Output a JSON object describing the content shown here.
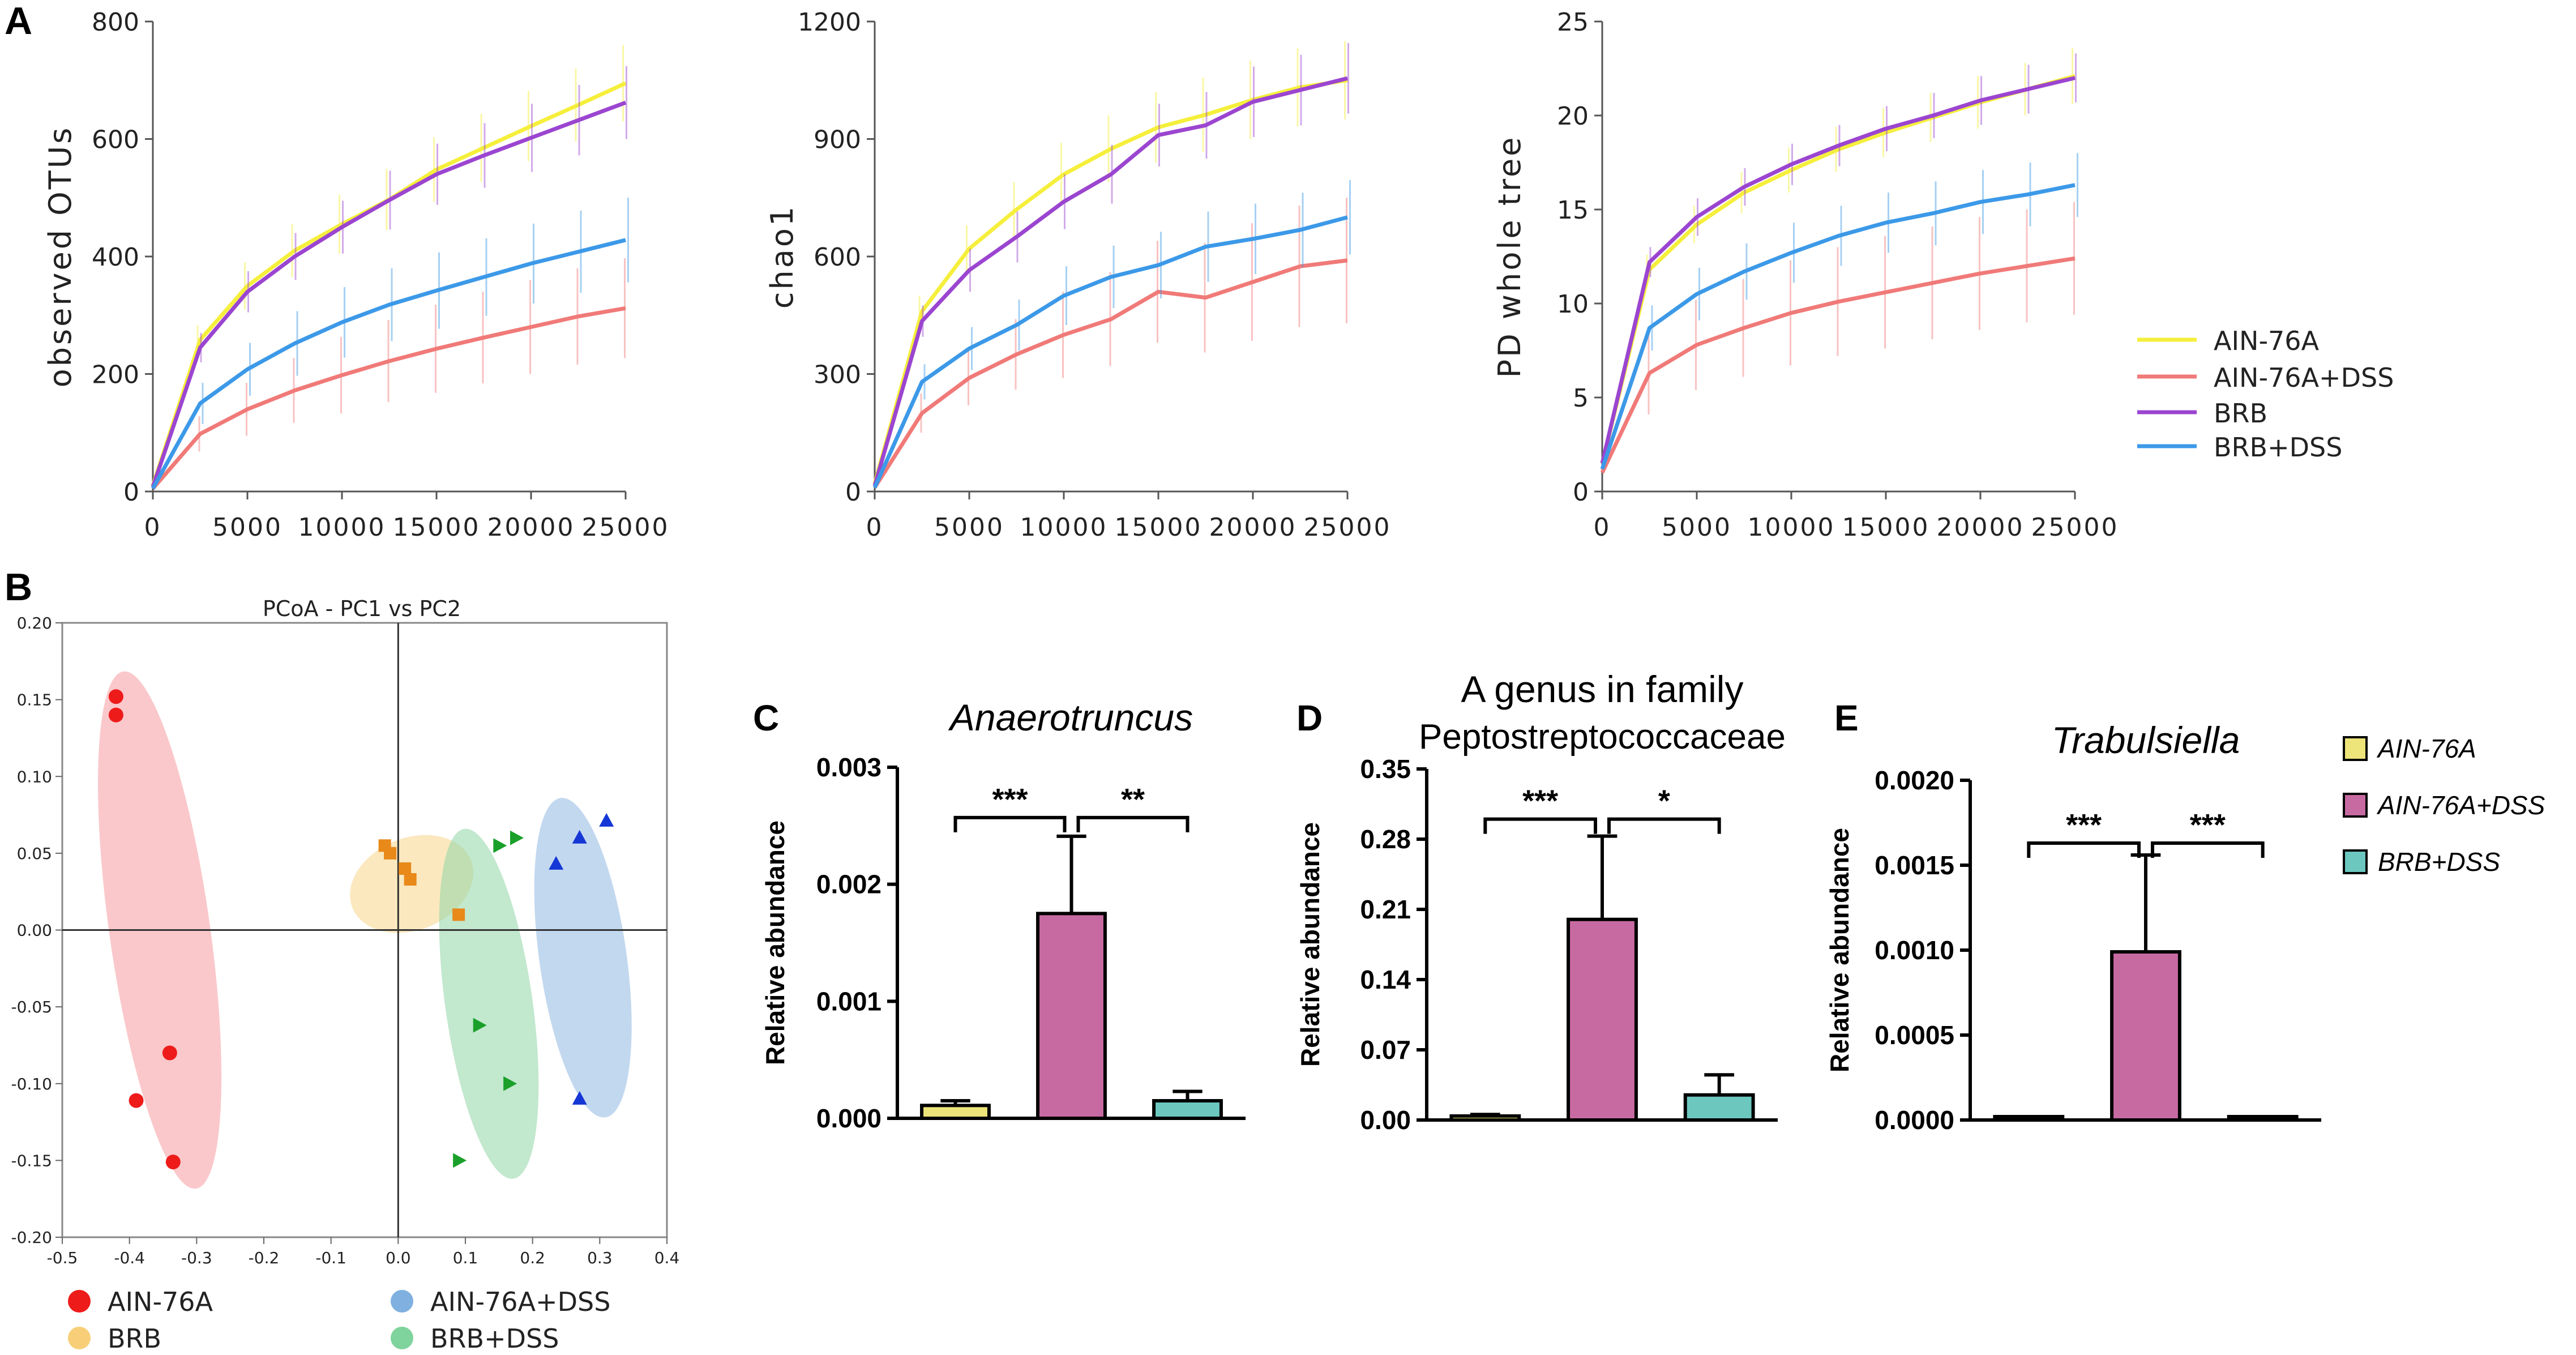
{
  "panel_labels": {
    "a": "A",
    "b": "B",
    "c": "C",
    "d": "D",
    "e": "E"
  },
  "colors": {
    "ain76a": "#f5ef3c",
    "ain76a_dss": "#f07a78",
    "brb": "#9b45d0",
    "brb_dss": "#3c99e8",
    "pcoa_ain76a": "#ee1b1b",
    "pcoa_brb": "#e8891a",
    "pcoa_ain76a_dss": "#1537d6",
    "pcoa_brb_dss": "#1aa02a",
    "ell_ain76a": "#f69aa0",
    "ell_brb": "#f8d58a",
    "ell_ain76a_dss": "#8fb8e2",
    "ell_brb_dss": "#8fd6a6",
    "bar_ain76a": "#ede47a",
    "bar_ain76a_dss": "#c86aa2",
    "bar_brb_dss": "#6cc7bf"
  },
  "rarefaction_legend": [
    "AIN-76A",
    "AIN-76A+DSS",
    "BRB",
    "BRB+DSS"
  ],
  "pcoa_legend": [
    "AIN-76A",
    "AIN-76A+DSS",
    "BRB",
    "BRB+DSS"
  ],
  "bar_legend": [
    "AIN-76A",
    "AIN-76A+DSS",
    "BRB+DSS"
  ],
  "chart_data": [
    {
      "id": "A1",
      "type": "line",
      "title": "",
      "xlabel": "",
      "ylabel": "observed OTUs",
      "xlim": [
        0,
        25000
      ],
      "ylim": [
        0,
        800
      ],
      "xticks": [
        "0",
        "5000",
        "10000",
        "15000",
        "20000",
        "25000"
      ],
      "yticks": [
        "0",
        "200",
        "400",
        "600",
        "800"
      ],
      "x": [
        0,
        2500,
        5000,
        7500,
        10000,
        12500,
        15000,
        17500,
        20000,
        22500,
        25000
      ],
      "series": [
        {
          "name": "AIN-76A",
          "values": [
            10,
            258,
            350,
            410,
            455,
            497,
            548,
            585,
            622,
            658,
            695
          ],
          "err": [
            0,
            25,
            40,
            45,
            50,
            52,
            55,
            58,
            60,
            62,
            65
          ]
        },
        {
          "name": "AIN-76A+DSS",
          "values": [
            5,
            98,
            140,
            172,
            198,
            222,
            243,
            262,
            280,
            298,
            312
          ],
          "err": [
            0,
            30,
            45,
            55,
            65,
            70,
            75,
            78,
            80,
            82,
            85
          ]
        },
        {
          "name": "BRB",
          "values": [
            8,
            245,
            340,
            400,
            450,
            496,
            540,
            572,
            602,
            632,
            662
          ],
          "err": [
            0,
            25,
            35,
            40,
            45,
            50,
            52,
            55,
            58,
            60,
            62
          ]
        },
        {
          "name": "BRB+DSS",
          "values": [
            5,
            150,
            208,
            252,
            288,
            318,
            342,
            365,
            388,
            408,
            428
          ],
          "err": [
            0,
            35,
            45,
            55,
            60,
            62,
            65,
            66,
            68,
            70,
            72
          ]
        }
      ]
    },
    {
      "id": "A2",
      "type": "line",
      "title": "",
      "xlabel": "",
      "ylabel": "chao1",
      "xlim": [
        0,
        25000
      ],
      "ylim": [
        0,
        1200
      ],
      "xticks": [
        "0",
        "5000",
        "10000",
        "15000",
        "20000",
        "25000"
      ],
      "yticks": [
        "0",
        "300",
        "600",
        "900",
        "1200"
      ],
      "x": [
        0,
        2500,
        5000,
        7500,
        10000,
        12500,
        15000,
        17500,
        20000,
        22500,
        25000
      ],
      "series": [
        {
          "name": "AIN-76A",
          "values": [
            20,
            460,
            620,
            720,
            810,
            875,
            930,
            962,
            1000,
            1032,
            1050
          ],
          "err": [
            0,
            40,
            60,
            70,
            80,
            85,
            90,
            95,
            100,
            100,
            100
          ]
        },
        {
          "name": "AIN-76A+DSS",
          "values": [
            10,
            200,
            290,
            350,
            400,
            440,
            510,
            495,
            535,
            575,
            590
          ],
          "err": [
            0,
            50,
            70,
            90,
            110,
            120,
            130,
            140,
            150,
            155,
            160
          ]
        },
        {
          "name": "BRB",
          "values": [
            15,
            435,
            565,
            650,
            740,
            810,
            910,
            935,
            995,
            1025,
            1055
          ],
          "err": [
            0,
            40,
            55,
            65,
            70,
            75,
            80,
            85,
            90,
            90,
            90
          ]
        },
        {
          "name": "BRB+DSS",
          "values": [
            10,
            280,
            365,
            425,
            500,
            548,
            578,
            625,
            645,
            668,
            700
          ],
          "err": [
            0,
            45,
            55,
            65,
            75,
            80,
            85,
            90,
            90,
            95,
            95
          ]
        }
      ]
    },
    {
      "id": "A3",
      "type": "line",
      "title": "",
      "xlabel": "",
      "ylabel": "PD whole tree",
      "xlim": [
        0,
        25000
      ],
      "ylim": [
        0,
        25
      ],
      "xticks": [
        "0",
        "5000",
        "10000",
        "15000",
        "20000",
        "25000"
      ],
      "yticks": [
        "0",
        "5",
        "10",
        "15",
        "20",
        "25"
      ],
      "x": [
        0,
        2500,
        5000,
        7500,
        10000,
        12500,
        15000,
        17500,
        20000,
        22500,
        25000
      ],
      "series": [
        {
          "name": "AIN-76A",
          "values": [
            1.5,
            11.8,
            14.2,
            15.9,
            17.1,
            18.2,
            19.1,
            19.9,
            20.7,
            21.4,
            22.1
          ],
          "err": [
            0,
            0.8,
            1.0,
            1.1,
            1.2,
            1.2,
            1.3,
            1.3,
            1.4,
            1.4,
            1.5
          ]
        },
        {
          "name": "AIN-76A+DSS",
          "values": [
            1.0,
            6.3,
            7.8,
            8.7,
            9.5,
            10.1,
            10.6,
            11.1,
            11.6,
            12.0,
            12.4
          ],
          "err": [
            0,
            2.2,
            2.4,
            2.6,
            2.8,
            2.9,
            3.0,
            3.0,
            3.0,
            3.0,
            3.0
          ]
        },
        {
          "name": "BRB",
          "values": [
            1.5,
            12.2,
            14.6,
            16.2,
            17.4,
            18.4,
            19.3,
            20.0,
            20.8,
            21.4,
            22.0
          ],
          "err": [
            0,
            0.8,
            1.0,
            1.0,
            1.1,
            1.1,
            1.2,
            1.2,
            1.3,
            1.3,
            1.3
          ]
        },
        {
          "name": "BRB+DSS",
          "values": [
            1.2,
            8.7,
            10.5,
            11.7,
            12.7,
            13.6,
            14.3,
            14.8,
            15.4,
            15.8,
            16.3
          ],
          "err": [
            0,
            1.2,
            1.4,
            1.5,
            1.6,
            1.6,
            1.6,
            1.7,
            1.7,
            1.7,
            1.7
          ]
        }
      ]
    },
    {
      "id": "B",
      "type": "scatter",
      "title": "PCoA - PC1 vs PC2",
      "xlabel": "",
      "ylabel": "",
      "xlim": [
        -0.5,
        0.4
      ],
      "ylim": [
        -0.2,
        0.2
      ],
      "xticks": [
        "-0.5",
        "-0.4",
        "-0.3",
        "-0.2",
        "-0.1",
        "0.0",
        "0.1",
        "0.2",
        "0.3",
        "0.4"
      ],
      "yticks": [
        "0.20",
        "0.15",
        "0.10",
        "0.05",
        "0.00",
        "-0.05",
        "-0.10",
        "-0.15",
        "-0.20"
      ],
      "xtick_values": [
        -0.5,
        -0.4,
        -0.3,
        -0.2,
        -0.1,
        0,
        0.1,
        0.2,
        0.3,
        0.4
      ],
      "ytick_values": [
        0.2,
        0.15,
        0.1,
        0.05,
        0,
        -0.05,
        -0.1,
        -0.15,
        -0.2
      ],
      "series": [
        {
          "name": "AIN-76A",
          "marker": "circle",
          "points": [
            [
              -0.42,
              0.152
            ],
            [
              -0.42,
              0.14
            ],
            [
              -0.34,
              -0.08
            ],
            [
              -0.39,
              -0.111
            ],
            [
              -0.335,
              -0.151
            ]
          ],
          "ellipse": {
            "cx": -0.355,
            "cy": 0.0,
            "rx": 0.075,
            "ry": 0.17,
            "angle_deg": -8
          }
        },
        {
          "name": "BRB",
          "marker": "square",
          "points": [
            [
              -0.02,
              0.055
            ],
            [
              -0.012,
              0.05
            ],
            [
              0.01,
              0.04
            ],
            [
              0.018,
              0.033
            ],
            [
              0.09,
              0.01
            ]
          ],
          "ellipse": {
            "cx": 0.02,
            "cy": 0.03,
            "rx": 0.095,
            "ry": 0.03,
            "angle_deg": -22
          }
        },
        {
          "name": "BRB+DSS",
          "marker": "triangle-right",
          "points": [
            [
              0.15,
              0.055
            ],
            [
              0.175,
              0.06
            ],
            [
              0.12,
              -0.062
            ],
            [
              0.165,
              -0.1
            ],
            [
              0.09,
              -0.15
            ]
          ],
          "ellipse": {
            "cx": 0.135,
            "cy": -0.048,
            "rx": 0.065,
            "ry": 0.115,
            "angle_deg": -8
          }
        },
        {
          "name": "AIN-76A+DSS",
          "marker": "triangle-up",
          "points": [
            [
              0.235,
              0.043
            ],
            [
              0.27,
              0.06
            ],
            [
              0.31,
              0.071
            ],
            [
              0.27,
              -0.11
            ]
          ],
          "ellipse": {
            "cx": 0.275,
            "cy": -0.018,
            "rx": 0.065,
            "ry": 0.105,
            "angle_deg": -8
          }
        }
      ]
    },
    {
      "id": "C",
      "type": "bar",
      "title": "Anaerotruncus",
      "ylabel": "Relative abundance",
      "categories": [
        "AIN-76A",
        "AIN-76A+DSS",
        "BRB+DSS"
      ],
      "values": [
        0.00011,
        0.00175,
        0.00015
      ],
      "errors": [
        4e-05,
        0.00066,
        8e-05
      ],
      "ylim": [
        0,
        0.003
      ],
      "yticks": [
        "0.000",
        "0.001",
        "0.002",
        "0.003"
      ],
      "significance": [
        {
          "from": 0,
          "to": 1,
          "label": "***",
          "y": 0.00257
        },
        {
          "from": 1,
          "to": 2,
          "label": "**",
          "y": 0.00257
        }
      ]
    },
    {
      "id": "D",
      "type": "bar",
      "title": "A genus in family",
      "subtitle": "Peptostreptococcaceae",
      "ylabel": "Relative abundance",
      "categories": [
        "AIN-76A",
        "AIN-76A+DSS",
        "BRB+DSS"
      ],
      "values": [
        0.004,
        0.2,
        0.025
      ],
      "errors": [
        0.0015,
        0.083,
        0.02
      ],
      "ylim": [
        0,
        0.35
      ],
      "yticks": [
        "0.00",
        "0.07",
        "0.14",
        "0.21",
        "0.28",
        "0.35"
      ],
      "significance": [
        {
          "from": 0,
          "to": 1,
          "label": "***",
          "y": 0.3
        },
        {
          "from": 1,
          "to": 2,
          "label": "*",
          "y": 0.3
        }
      ]
    },
    {
      "id": "E",
      "type": "bar",
      "title": "Trabulsiella",
      "ylabel": "Relative abundance",
      "categories": [
        "AIN-76A",
        "AIN-76A+DSS",
        "BRB+DSS"
      ],
      "values": [
        1e-05,
        0.00099,
        8e-06
      ],
      "errors": [
        4e-06,
        0.00057,
        3e-06
      ],
      "ylim": [
        0,
        0.002
      ],
      "yticks": [
        "0.0000",
        "0.0005",
        "0.0010",
        "0.0015",
        "0.0020"
      ],
      "significance": [
        {
          "from": 0,
          "to": 1,
          "label": "***",
          "y": 0.00163
        },
        {
          "from": 1,
          "to": 2,
          "label": "***",
          "y": 0.00163
        }
      ]
    }
  ]
}
